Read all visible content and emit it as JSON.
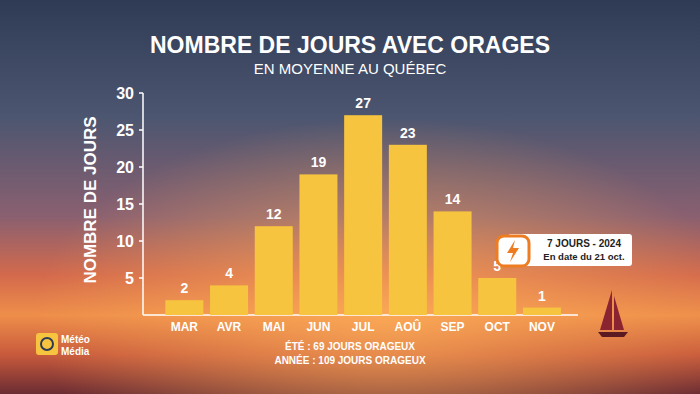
{
  "chart_data": {
    "type": "bar",
    "title": "NOMBRE DE JOURS AVEC ORAGES",
    "subtitle": "EN MOYENNE AU QUÉBEC",
    "y_label": "NOMBRE DE JOURS",
    "categories": [
      "MAR",
      "AVR",
      "MAI",
      "JUN",
      "JUL",
      "AOÛ",
      "SEP",
      "OCT",
      "NOV"
    ],
    "values": [
      2,
      4,
      12,
      19,
      27,
      23,
      14,
      5,
      1
    ],
    "color": "#f7c43f",
    "ylim": [
      0,
      30
    ],
    "yticks": [
      5,
      10,
      15,
      20,
      25,
      30
    ],
    "grid": false,
    "data_labels": true,
    "annotations": [
      "7 JOURS - 2024",
      "En date du 21 oct.",
      "ÉTÉ : 69 JOURS ORAGEUX",
      "ANNÉE : 109 JOURS ORAGEUX"
    ],
    "logo": [
      "Météo",
      "Média"
    ]
  }
}
